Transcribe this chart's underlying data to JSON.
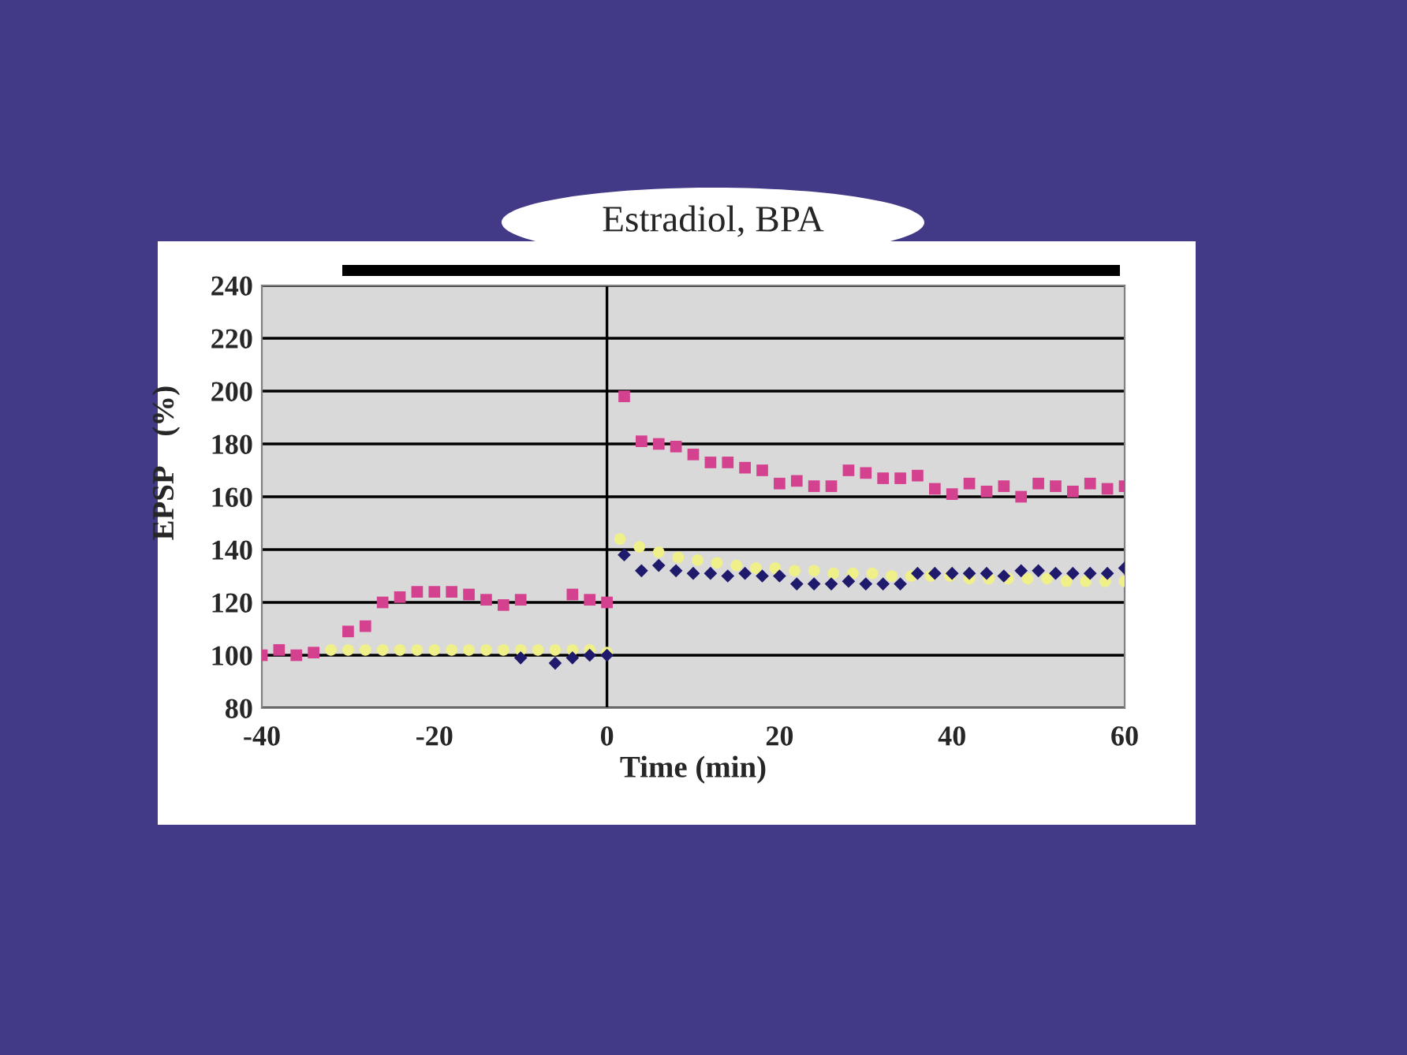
{
  "chart_data": {
    "type": "scatter",
    "title": "Estradiol, BPA",
    "xlabel": "Time (min)",
    "ylabel": "EPSP    (%)",
    "xlim": [
      -40,
      60
    ],
    "xticks": [
      -40,
      -20,
      0,
      20,
      40,
      60
    ],
    "ylim": [
      80,
      240
    ],
    "yticks": [
      80,
      100,
      120,
      140,
      160,
      180,
      200,
      220,
      240
    ],
    "grid": "y",
    "legend": false,
    "series": [
      {
        "color": "#d4418f",
        "marker": "square",
        "x": [
          -40,
          -38,
          -36,
          -34,
          -32,
          -30,
          -28,
          -26,
          -24,
          -22,
          -20,
          -18,
          -16,
          -14,
          -12,
          -10,
          -8,
          -6,
          -4,
          -2,
          0,
          2,
          4,
          6,
          8,
          10,
          12,
          14,
          16,
          18,
          20,
          22,
          24,
          26,
          28,
          30,
          32,
          34,
          36,
          38,
          40,
          42,
          44,
          46,
          48,
          50,
          52,
          54,
          56,
          58,
          60
        ],
        "values": [
          100,
          102,
          100,
          101,
          null,
          109,
          111,
          120,
          122,
          124,
          124,
          124,
          123,
          121,
          119,
          121,
          null,
          null,
          123,
          121,
          120,
          198,
          181,
          180,
          179,
          176,
          173,
          173,
          171,
          170,
          165,
          166,
          164,
          164,
          170,
          169,
          167,
          167,
          168,
          163,
          161,
          165,
          162,
          164,
          160,
          165,
          164,
          162,
          165,
          163,
          164
        ]
      },
      {
        "color": "#1f1a6b",
        "marker": "diamond",
        "x": [
          -10,
          -8,
          -6,
          -4,
          -2,
          0,
          2,
          4,
          6,
          8,
          10,
          12,
          14,
          16,
          18,
          20,
          22,
          24,
          26,
          28,
          30,
          32,
          34,
          36,
          38,
          40,
          42,
          44,
          46,
          48,
          50,
          52,
          54,
          56,
          58,
          60
        ],
        "values": [
          99,
          null,
          97,
          99,
          100,
          100,
          138,
          132,
          134,
          132,
          131,
          131,
          130,
          131,
          130,
          130,
          127,
          127,
          127,
          128,
          127,
          127,
          127,
          131,
          131,
          131,
          131,
          131,
          130,
          132,
          132,
          131,
          131,
          131,
          131,
          133
        ]
      },
      {
        "color": "#f0f08a",
        "marker": "circle",
        "x": [
          -32,
          -30,
          -28,
          -26,
          -24,
          -22,
          -20,
          -18,
          -16,
          -14,
          -12,
          -10,
          -8,
          -6,
          -4,
          -2,
          0,
          1.5,
          3.75,
          6,
          8.25,
          10.5,
          12.75,
          15,
          17.25,
          19.5,
          21.75,
          24,
          26.25,
          28.5,
          30.75,
          33,
          35.25,
          37.5,
          39.75,
          42,
          44.25,
          46.5,
          48.75,
          51,
          53.25,
          55.5,
          57.75,
          60
        ],
        "values": [
          102,
          102,
          102,
          102,
          102,
          102,
          102,
          102,
          102,
          102,
          102,
          102,
          102,
          102,
          102,
          102,
          101,
          144,
          141,
          139,
          137,
          136,
          135,
          134,
          133,
          133,
          132,
          132,
          131,
          131,
          131,
          130,
          130,
          130,
          130,
          129,
          129,
          129,
          129,
          129,
          128,
          128,
          128,
          128
        ]
      }
    ],
    "ref_lines": [
      {
        "axis": "x",
        "value": 0,
        "color": "#000000"
      }
    ]
  }
}
